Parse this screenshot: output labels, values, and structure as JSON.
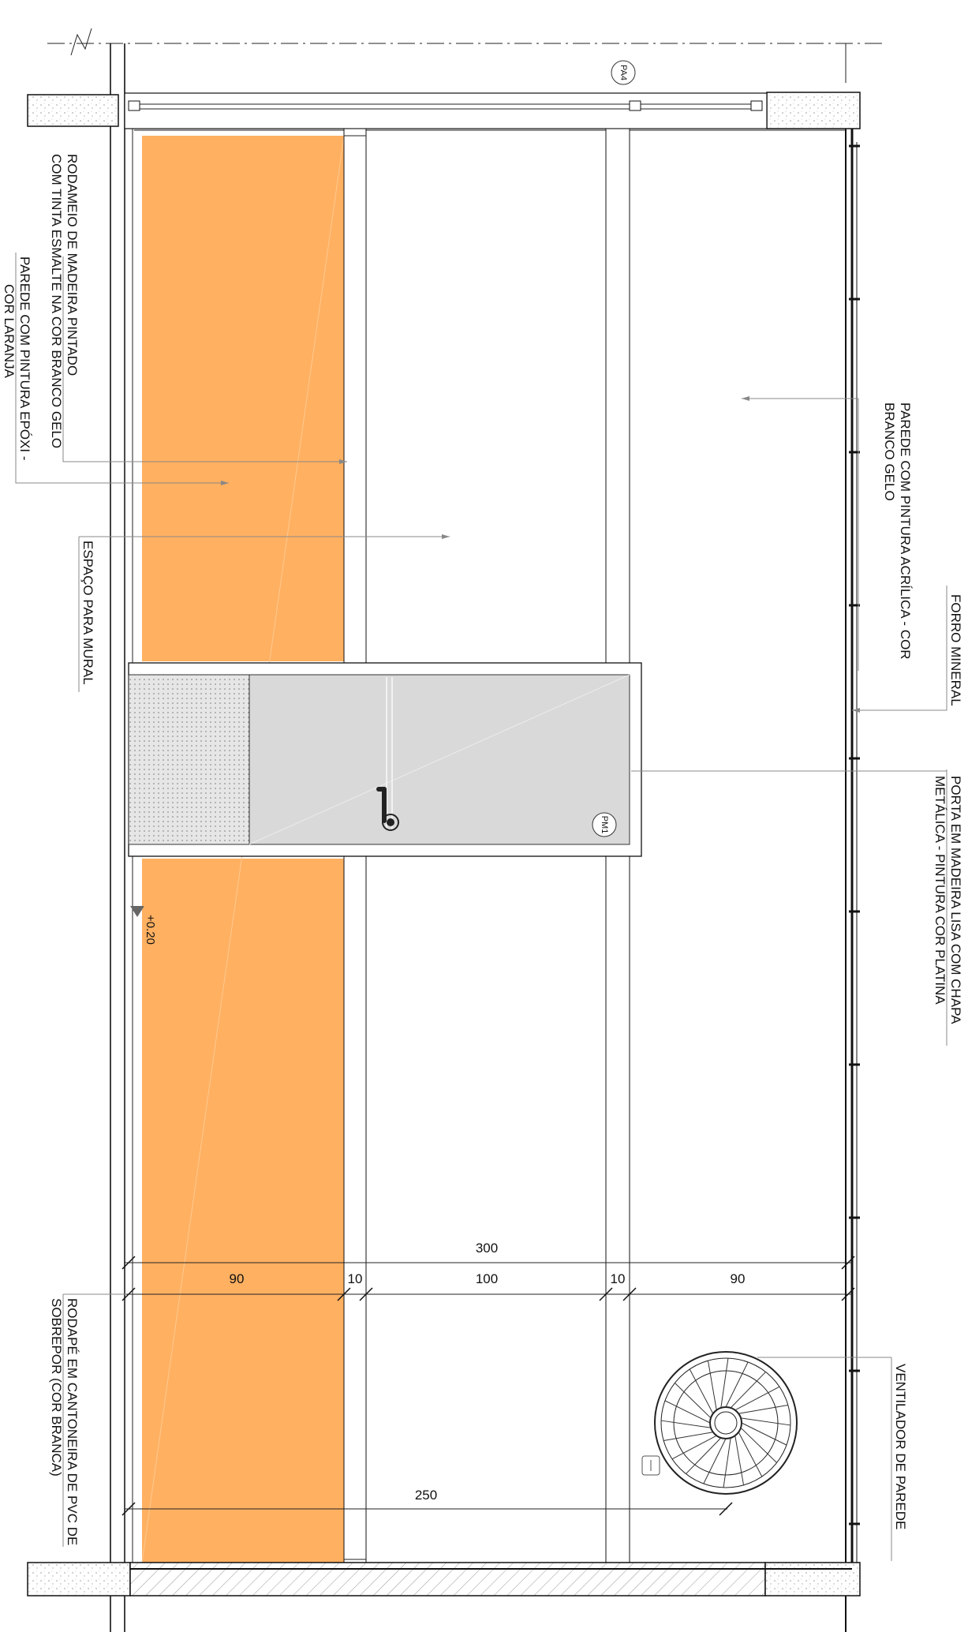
{
  "drawing": {
    "labels": {
      "rodameio": [
        "RODAMEIO DE MADEIRA PINTADO",
        "COM TINTA ESMALTE NA COR BRANCO GELO"
      ],
      "parede_epoxi": [
        "PAREDE COM PINTURA EPÓXI -",
        "COR LARANJA"
      ],
      "espaco_mural": "ESPAÇO PARA MURAL",
      "rodape": [
        "RODAPÉ EM CANTONEIRA DE PVC DE",
        "SOBREPOR (COR BRANCA)"
      ],
      "parede_acrilica": [
        "PAREDE COM PINTURA ACRÍLICA - COR",
        "BRANCO GELO"
      ],
      "forro": "FORRO MINERAL",
      "porta": [
        "PORTA EM MADEIRA LISA COM CHAPA",
        "METÁLICA - PINTURA COR PLATINA"
      ],
      "ventilador": "VENTILADOR DE PAREDE"
    },
    "tags": {
      "pa4": "PA4",
      "pm1": "PM1",
      "level": "+0.20"
    },
    "dimensions": {
      "total": "300",
      "seg1": "90",
      "seg2": "10",
      "seg3": "100",
      "seg4": "10",
      "seg5": "90",
      "fan": "250"
    },
    "colors": {
      "orange_wall": "#ffb061",
      "door": "#d9d9d9",
      "line": "#111111"
    }
  }
}
